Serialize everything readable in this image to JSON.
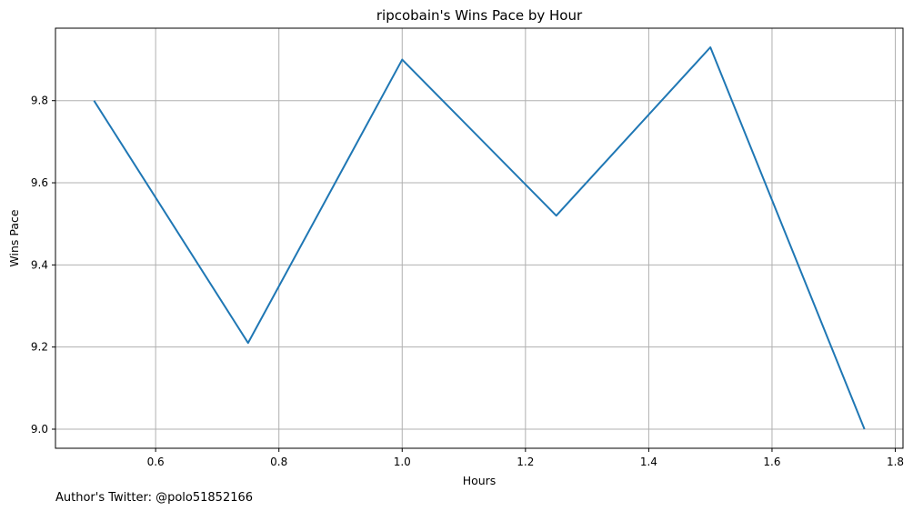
{
  "chart_data": {
    "type": "line",
    "title": "ripcobain's Wins Pace by Hour",
    "xlabel": "Hours",
    "ylabel": "Wins Pace",
    "xlim": [
      0.4375,
      1.8125
    ],
    "ylim": [
      8.9535,
      9.9765
    ],
    "grid": true,
    "x_ticks": [
      0.6,
      0.8,
      1.0,
      1.2,
      1.4,
      1.6,
      1.8
    ],
    "y_ticks": [
      9.0,
      9.2,
      9.4,
      9.6,
      9.8
    ],
    "series": [
      {
        "color": "#1f77b4",
        "x": [
          0.5,
          0.75,
          1.0,
          1.25,
          1.5,
          1.75
        ],
        "y": [
          9.8,
          9.21,
          9.9,
          9.52,
          9.93,
          9.0
        ]
      }
    ]
  },
  "footnote": "Author's Twitter: @polo51852166"
}
